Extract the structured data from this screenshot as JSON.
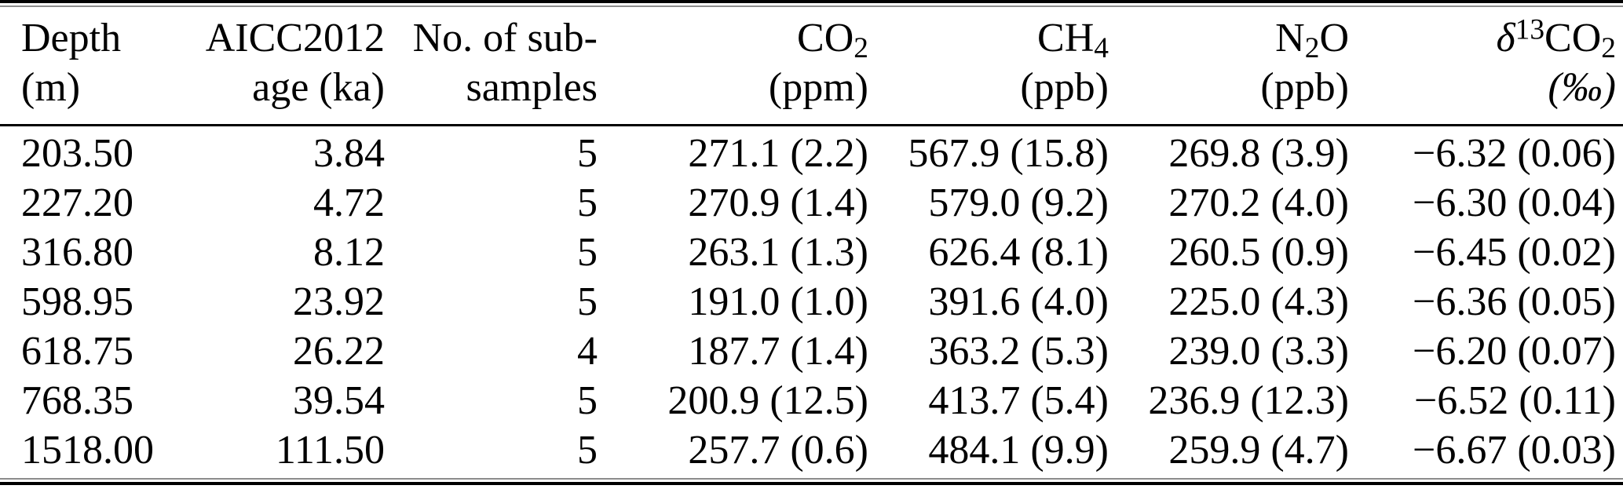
{
  "page": {
    "background": "#ffffff"
  },
  "table": {
    "title": "ice-core gas concentration table",
    "colors": {
      "text": "#000000",
      "background": "#ffffff",
      "rule_heavy": "#000000",
      "rule_thin": "#8c8c8c",
      "header_rule": "#000000"
    },
    "columns": [
      {
        "id": "depth",
        "align": "left",
        "line1": [
          {
            "t": "Depth"
          }
        ],
        "line2": [
          {
            "t": "(m)"
          }
        ]
      },
      {
        "id": "aicc2012-age",
        "align": "right",
        "line1": [
          {
            "t": "AICC2012"
          }
        ],
        "line2": [
          {
            "t": "age (ka)"
          }
        ]
      },
      {
        "id": "num-subsamples",
        "align": "right",
        "line1": [
          {
            "t": "No. of sub-"
          }
        ],
        "line2": [
          {
            "t": "samples"
          }
        ]
      },
      {
        "id": "co2-ppm",
        "align": "right",
        "line1": [
          {
            "t": "CO"
          },
          {
            "t": "2",
            "s": "sub"
          }
        ],
        "line2": [
          {
            "t": "(ppm)"
          }
        ]
      },
      {
        "id": "ch4-ppb",
        "align": "right",
        "line1": [
          {
            "t": "CH"
          },
          {
            "t": "4",
            "s": "sub"
          }
        ],
        "line2": [
          {
            "t": "(ppb)"
          }
        ]
      },
      {
        "id": "n2o-ppb",
        "align": "right",
        "line1": [
          {
            "t": "N"
          },
          {
            "t": "2",
            "s": "sub"
          },
          {
            "t": "O"
          }
        ],
        "line2": [
          {
            "t": "(ppb)"
          }
        ]
      },
      {
        "id": "d13co2-permil",
        "align": "right",
        "line1": [
          {
            "t": "δ",
            "s": "italic"
          },
          {
            "t": "13",
            "s": "sup"
          },
          {
            "t": "CO"
          },
          {
            "t": "2",
            "s": "sub"
          }
        ],
        "line2": [
          {
            "t": "(‰)",
            "s": "italic"
          }
        ]
      }
    ],
    "rows": [
      [
        "203.50",
        "3.84",
        "5",
        "271.1 (2.2)",
        "567.9 (15.8)",
        "269.8 (3.9)",
        "−6.32 (0.06)"
      ],
      [
        "227.20",
        "4.72",
        "5",
        "270.9 (1.4)",
        "579.0 (9.2)",
        "270.2 (4.0)",
        "−6.30 (0.04)"
      ],
      [
        "316.80",
        "8.12",
        "5",
        "263.1 (1.3)",
        "626.4 (8.1)",
        "260.5 (0.9)",
        "−6.45 (0.02)"
      ],
      [
        "598.95",
        "23.92",
        "5",
        "191.0 (1.0)",
        "391.6 (4.0)",
        "225.0 (4.3)",
        "−6.36 (0.05)"
      ],
      [
        "618.75",
        "26.22",
        "4",
        "187.7 (1.4)",
        "363.2 (5.3)",
        "239.0 (3.3)",
        "−6.20 (0.07)"
      ],
      [
        "768.35",
        "39.54",
        "5",
        "200.9 (12.5)",
        "413.7 (5.4)",
        "236.9 (12.3)",
        "−6.52 (0.11)"
      ],
      [
        "1518.00",
        "111.50",
        "5",
        "257.7 (0.6)",
        "484.1 (9.9)",
        "259.9 (4.7)",
        "−6.67 (0.03)"
      ]
    ]
  }
}
